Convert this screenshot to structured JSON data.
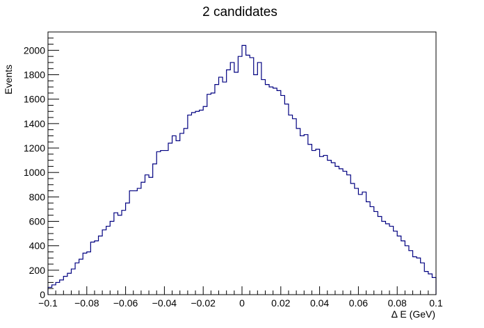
{
  "chart_data": {
    "type": "histogram",
    "title": "2 candidates",
    "xlabel": "∆ E (GeV)",
    "ylabel": "Events",
    "xlim": [
      -0.1,
      0.1
    ],
    "ylim": [
      0,
      2150
    ],
    "bins": 100,
    "bin_width": 0.002,
    "line_color": "#000080",
    "grid": false,
    "x_ticks": [
      {
        "value": -0.1,
        "label": "−0.1"
      },
      {
        "value": -0.08,
        "label": "−0.08"
      },
      {
        "value": -0.06,
        "label": "−0.06"
      },
      {
        "value": -0.04,
        "label": "−0.04"
      },
      {
        "value": -0.02,
        "label": "−0.02"
      },
      {
        "value": 0,
        "label": "0"
      },
      {
        "value": 0.02,
        "label": "0.02"
      },
      {
        "value": 0.04,
        "label": "0.04"
      },
      {
        "value": 0.06,
        "label": "0.06"
      },
      {
        "value": 0.08,
        "label": "0.08"
      },
      {
        "value": 0.1,
        "label": "0.1"
      }
    ],
    "y_ticks": [
      {
        "value": 0,
        "label": "0"
      },
      {
        "value": 200,
        "label": "200"
      },
      {
        "value": 400,
        "label": "400"
      },
      {
        "value": 600,
        "label": "600"
      },
      {
        "value": 800,
        "label": "800"
      },
      {
        "value": 1000,
        "label": "1000"
      },
      {
        "value": 1200,
        "label": "1200"
      },
      {
        "value": 1400,
        "label": "1400"
      },
      {
        "value": 1600,
        "label": "1600"
      },
      {
        "value": 1800,
        "label": "1800"
      },
      {
        "value": 2000,
        "label": "2000"
      }
    ],
    "values": [
      60,
      80,
      100,
      120,
      150,
      175,
      210,
      260,
      290,
      340,
      350,
      430,
      440,
      480,
      530,
      560,
      600,
      670,
      650,
      690,
      750,
      850,
      850,
      870,
      920,
      980,
      960,
      1070,
      1170,
      1180,
      1180,
      1240,
      1300,
      1260,
      1320,
      1360,
      1470,
      1490,
      1500,
      1510,
      1540,
      1640,
      1650,
      1720,
      1780,
      1740,
      1840,
      1900,
      1820,
      1950,
      2040,
      1960,
      1940,
      1800,
      1900,
      1760,
      1720,
      1700,
      1690,
      1670,
      1630,
      1560,
      1470,
      1440,
      1360,
      1300,
      1310,
      1230,
      1180,
      1190,
      1130,
      1140,
      1100,
      1080,
      1050,
      1030,
      1010,
      980,
      910,
      870,
      820,
      840,
      760,
      720,
      680,
      640,
      600,
      580,
      560,
      520,
      480,
      440,
      400,
      360,
      310,
      300,
      260,
      190,
      170,
      140
    ]
  }
}
